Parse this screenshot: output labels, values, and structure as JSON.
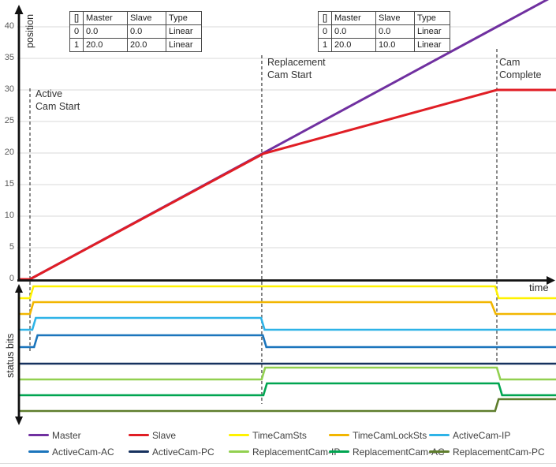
{
  "chart_data": {
    "type": "line",
    "description": "Cam replacement timing diagram: position vs time with status bits",
    "grid": true,
    "position_plot": {
      "ylabel": "position",
      "xlabel": "time",
      "yticks": [
        0,
        5,
        10,
        15,
        20,
        25,
        30,
        35,
        40
      ],
      "ylim": [
        0,
        44
      ],
      "series": [
        {
          "name": "Master",
          "color": "#7030A0",
          "points": [
            [
              -0.9,
              0
            ],
            [
              0,
              0
            ],
            [
              45.1,
              45.1
            ]
          ]
        },
        {
          "name": "Slave",
          "color": "#E01E25",
          "points": [
            [
              -0.9,
              0
            ],
            [
              0,
              0
            ],
            [
              20,
              19.9
            ],
            [
              40,
              30
            ],
            [
              45.1,
              30
            ]
          ]
        }
      ]
    },
    "status_plot": {
      "ylabel": "status bits",
      "signals": [
        {
          "name": "TimeCamSts",
          "color": "#FFF200",
          "points": [
            [
              -0.9,
              0
            ],
            [
              0,
              0
            ],
            [
              0.3,
              1
            ],
            [
              39.85,
              1
            ],
            [
              40.15,
              0
            ],
            [
              45.1,
              0
            ]
          ]
        },
        {
          "name": "TimeCamLockSts",
          "color": "#F2B600",
          "points": [
            [
              -0.9,
              0
            ],
            [
              0,
              0
            ],
            [
              0.3,
              1
            ],
            [
              39.5,
              1
            ],
            [
              39.9,
              0
            ],
            [
              45.1,
              0
            ]
          ]
        },
        {
          "name": "ActiveCam-IP",
          "color": "#2EB3E7",
          "points": [
            [
              -0.9,
              0
            ],
            [
              0.2,
              0
            ],
            [
              0.5,
              1
            ],
            [
              19.8,
              1
            ],
            [
              20.1,
              0
            ],
            [
              45.1,
              0
            ]
          ]
        },
        {
          "name": "ActiveCam-AC",
          "color": "#1B75BC",
          "points": [
            [
              -0.9,
              0
            ],
            [
              0.35,
              0
            ],
            [
              0.65,
              1
            ],
            [
              19.95,
              1
            ],
            [
              20.25,
              0
            ],
            [
              45.1,
              0
            ]
          ]
        },
        {
          "name": "ActiveCam-PC",
          "color": "#16315E",
          "points": [
            [
              -0.9,
              0
            ],
            [
              45.1,
              0
            ]
          ]
        },
        {
          "name": "ReplacementCam-IP",
          "color": "#92D050",
          "points": [
            [
              -0.9,
              0
            ],
            [
              19.85,
              0
            ],
            [
              20.15,
              1
            ],
            [
              40.0,
              1
            ],
            [
              40.3,
              0
            ],
            [
              45.1,
              0
            ]
          ]
        },
        {
          "name": "ReplacementCam-AC",
          "color": "#00A551",
          "points": [
            [
              -0.9,
              0
            ],
            [
              20.0,
              0
            ],
            [
              20.3,
              1
            ],
            [
              40.15,
              1
            ],
            [
              40.45,
              0
            ],
            [
              45.1,
              0
            ]
          ]
        },
        {
          "name": "ReplacementCam-PC",
          "color": "#5E7D2C",
          "points": [
            [
              -0.9,
              0
            ],
            [
              39.85,
              0
            ],
            [
              40.15,
              1
            ],
            [
              45.1,
              1
            ]
          ]
        }
      ]
    },
    "events": [
      {
        "label": "Active\nCam Start",
        "t": 0
      },
      {
        "label": "Replacement\nCam Start",
        "t": 19.86
      },
      {
        "label": "Cam\nComplete",
        "t": 40
      }
    ],
    "cam_tables": [
      {
        "headers": [
          "[]",
          "Master",
          "Slave",
          "Type"
        ],
        "rows": [
          [
            "0",
            "0.0",
            "0.0",
            "Linear"
          ],
          [
            "1",
            "20.0",
            "20.0",
            "Linear"
          ]
        ]
      },
      {
        "headers": [
          "[]",
          "Master",
          "Slave",
          "Type"
        ],
        "rows": [
          [
            "0",
            "0.0",
            "0.0",
            "Linear"
          ],
          [
            "1",
            "20.0",
            "10.0",
            "Linear"
          ]
        ]
      }
    ],
    "legend": {
      "position": "bottom",
      "items": [
        {
          "label": "Master",
          "color": "#7030A0"
        },
        {
          "label": "Slave",
          "color": "#E01E25"
        },
        {
          "label": "TimeCamSts",
          "color": "#FFF200"
        },
        {
          "label": "TimeCamLockSts",
          "color": "#F2B600"
        },
        {
          "label": "ActiveCam-IP",
          "color": "#2EB3E7"
        },
        {
          "label": "ActiveCam-AC",
          "color": "#1B75BC"
        },
        {
          "label": "ActiveCam-PC",
          "color": "#16315E"
        },
        {
          "label": "ReplacementCam-IP",
          "color": "#92D050"
        },
        {
          "label": "ReplacementCam-AC",
          "color": "#00A551"
        },
        {
          "label": "ReplacementCam-PC",
          "color": "#5E7D2C"
        }
      ]
    }
  }
}
